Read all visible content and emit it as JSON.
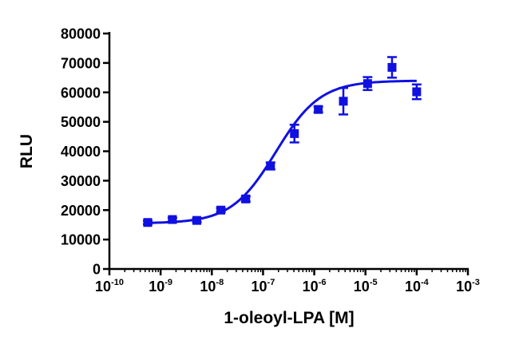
{
  "chart_data": {
    "type": "scatter",
    "title": "",
    "xlabel": "1-oleoyl-LPA [M]",
    "ylabel": "RLU",
    "x_scale": "log10",
    "xlim": [
      1e-10,
      0.001
    ],
    "ylim": [
      0,
      80000
    ],
    "x_ticks": [
      {
        "value": 1e-10,
        "base": "10",
        "exp": "-10"
      },
      {
        "value": 1e-09,
        "base": "10",
        "exp": "-9"
      },
      {
        "value": 1e-08,
        "base": "10",
        "exp": "-8"
      },
      {
        "value": 1e-07,
        "base": "10",
        "exp": "-7"
      },
      {
        "value": 1e-06,
        "base": "10",
        "exp": "-6"
      },
      {
        "value": 1e-05,
        "base": "10",
        "exp": "-5"
      },
      {
        "value": 0.0001,
        "base": "10",
        "exp": "-4"
      },
      {
        "value": 0.001,
        "base": "10",
        "exp": "-3"
      }
    ],
    "y_ticks": [
      0,
      10000,
      20000,
      30000,
      40000,
      50000,
      60000,
      70000,
      80000
    ],
    "grid": false,
    "legend": "none",
    "color": "#1010e0",
    "series": [
      {
        "marker": "square",
        "points": [
          {
            "x": 5.6e-10,
            "y": 15800,
            "err": 600
          },
          {
            "x": 1.7e-09,
            "y": 16800,
            "err": 600
          },
          {
            "x": 5.1e-09,
            "y": 16500,
            "err": 600
          },
          {
            "x": 1.5e-08,
            "y": 20000,
            "err": 700
          },
          {
            "x": 4.6e-08,
            "y": 23800,
            "err": 900
          },
          {
            "x": 1.4e-07,
            "y": 35000,
            "err": 1200
          },
          {
            "x": 4.1e-07,
            "y": 46000,
            "err": 3000
          },
          {
            "x": 1.2e-06,
            "y": 54200,
            "err": 1000
          },
          {
            "x": 3.7e-06,
            "y": 57000,
            "err": 4500
          },
          {
            "x": 1.1e-05,
            "y": 63000,
            "err": 2200
          },
          {
            "x": 3.3e-05,
            "y": 68500,
            "err": 3500
          },
          {
            "x": 0.0001,
            "y": 60200,
            "err": 2500
          }
        ]
      }
    ],
    "fit": {
      "type": "sigmoidal dose-response",
      "bottom": 15500,
      "top": 64000,
      "log_ec50": -6.75,
      "hill": 1.0,
      "x_range": [
        5.6e-10,
        0.0001
      ]
    }
  }
}
